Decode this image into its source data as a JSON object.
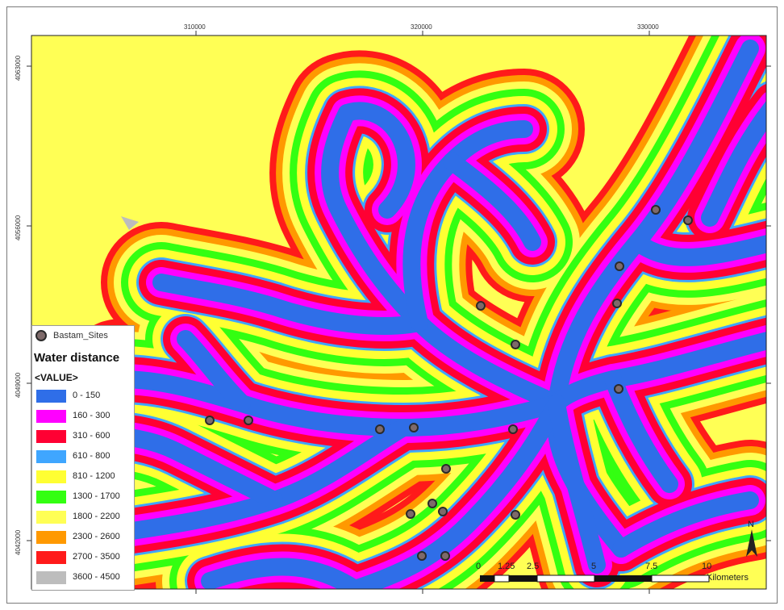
{
  "map": {
    "colors": {
      "c0_150": "#2f6ee8",
      "c160_300": "#ff00ff",
      "c310_600": "#ff0033",
      "c610_800": "#3fa6ff",
      "c810_1200": "#ffff33",
      "c1300_1700": "#33ff11",
      "c1800_2200": "#ffff55",
      "c2300_2600": "#ff9900",
      "c2700_3500": "#ff1a1a",
      "c3600_4500": "#bdbdbd"
    },
    "x_ticks": [
      "310000",
      "320000",
      "330000"
    ],
    "y_ticks": [
      "4063000",
      "4056000",
      "4049000",
      "4042000"
    ]
  },
  "legend": {
    "sites_label": "Bastam_Sites",
    "title": "Water distance",
    "field": "<VALUE>",
    "classes": [
      {
        "label": "0 - 150",
        "color": "#2f6ee8"
      },
      {
        "label": "160 - 300",
        "color": "#ff00ff"
      },
      {
        "label": "310 - 600",
        "color": "#ff0033"
      },
      {
        "label": "610 - 800",
        "color": "#3fa6ff"
      },
      {
        "label": "810 - 1200",
        "color": "#ffff33"
      },
      {
        "label": "1300 - 1700",
        "color": "#33ff11"
      },
      {
        "label": "1800 - 2200",
        "color": "#ffff55"
      },
      {
        "label": "2300 - 2600",
        "color": "#ff9900"
      },
      {
        "label": "2700 - 3500",
        "color": "#ff1a1a"
      },
      {
        "label": "3600 - 4500",
        "color": "#bdbdbd"
      }
    ]
  },
  "scalebar": {
    "labels": [
      "0",
      "1.25",
      "2.5",
      "5",
      "7.5",
      "10"
    ],
    "unit": "Kilometers"
  },
  "north_arrow": {
    "label": "N",
    "icon": "north-arrow-icon"
  }
}
